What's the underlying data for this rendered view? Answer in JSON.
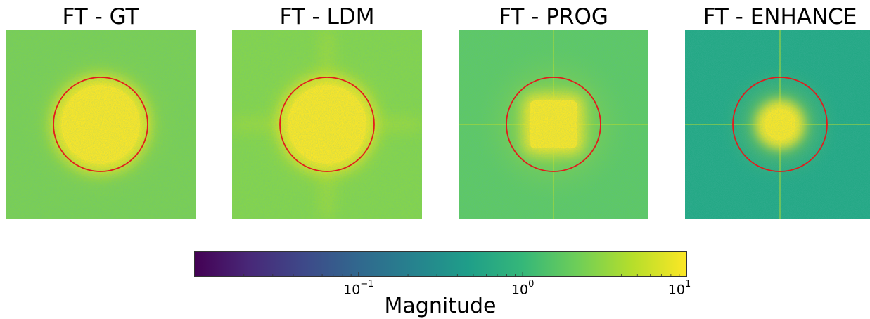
{
  "panels": [
    {
      "title": "FT - GT",
      "center_shape": "circle",
      "background": "#7cd050",
      "core": "#fde725",
      "cross": "none"
    },
    {
      "title": "FT - LDM",
      "center_shape": "circle",
      "background": "#86d549",
      "core": "#fde725",
      "cross": "faint-glow"
    },
    {
      "title": "FT - PROG",
      "center_shape": "rounded-square",
      "background": "#5ec962",
      "core": "#fde725",
      "cross": "thin-line"
    },
    {
      "title": "FT - ENHANCE",
      "center_shape": "small-disk",
      "background": "#22a884",
      "core": "#fde725",
      "cross": "thin-line"
    }
  ],
  "overlay": {
    "shape": "circle",
    "color": "#e41a1c"
  },
  "colorbar": {
    "label": "Magnitude",
    "scale": "log",
    "range": [
      0.01,
      10
    ],
    "colormap": "viridis",
    "ticks": [
      {
        "value": 0.1,
        "base": "10",
        "exp": "−1"
      },
      {
        "value": 1,
        "base": "10",
        "exp": "0"
      },
      {
        "value": 10,
        "base": "10",
        "exp": "1"
      }
    ]
  },
  "chart_data": {
    "type": "heatmap",
    "titles": [
      "FT - GT",
      "FT - LDM",
      "FT - PROG",
      "FT - ENHANCE"
    ],
    "colorbar_label": "Magnitude",
    "color_scale": "log",
    "color_range": [
      0.01,
      10
    ],
    "colorbar_ticks": [
      0.1,
      1,
      10
    ]
  }
}
